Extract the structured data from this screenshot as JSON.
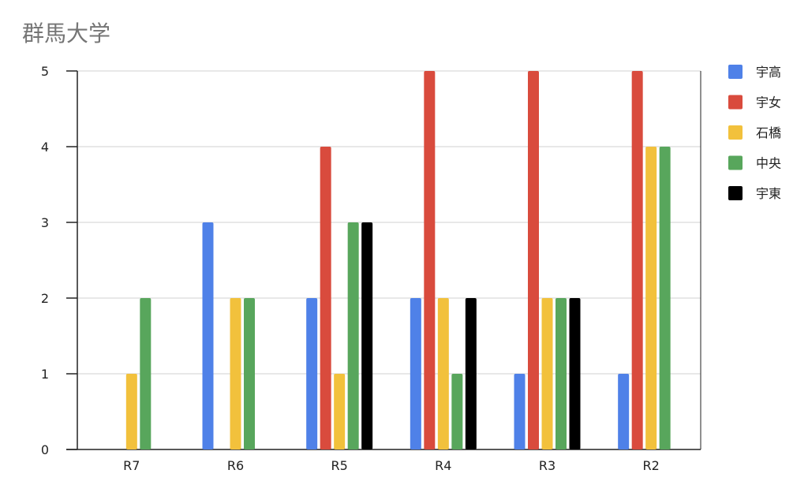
{
  "chart_data": {
    "type": "bar",
    "title": "群馬大学",
    "categories": [
      "R7",
      "R6",
      "R5",
      "R4",
      "R3",
      "R2"
    ],
    "ylim": [
      0,
      5
    ],
    "yticks": [
      0,
      1,
      2,
      3,
      4,
      5
    ],
    "grid": true,
    "legend_position": "right",
    "series": [
      {
        "name": "宇高",
        "color": "#4F81E8",
        "values": [
          0,
          3,
          2,
          2,
          1,
          1
        ]
      },
      {
        "name": "宇女",
        "color": "#D94B3D",
        "values": [
          0,
          0,
          4,
          5,
          5,
          5
        ]
      },
      {
        "name": "石橋",
        "color": "#F2C13C",
        "values": [
          1,
          2,
          1,
          2,
          2,
          4
        ]
      },
      {
        "name": "中央",
        "color": "#58A65C",
        "values": [
          2,
          2,
          3,
          1,
          2,
          4
        ]
      },
      {
        "name": "宇東",
        "color": "#000000",
        "values": [
          0,
          0,
          3,
          2,
          2,
          0
        ]
      }
    ]
  }
}
